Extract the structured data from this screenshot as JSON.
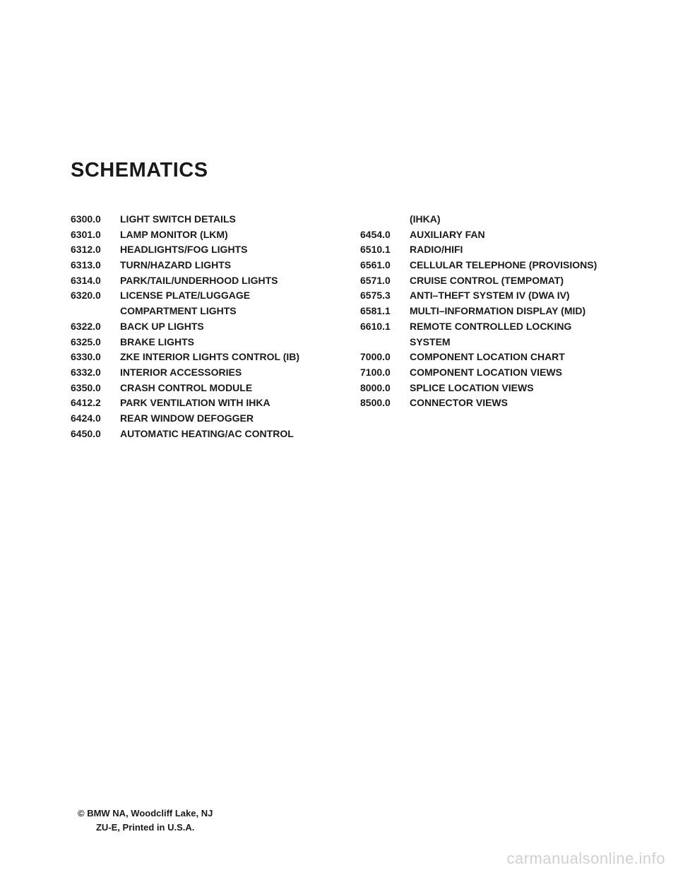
{
  "title": "SCHEMATICS",
  "leftColumn": [
    {
      "code": "6300.0",
      "label": "LIGHT SWITCH DETAILS"
    },
    {
      "code": "6301.0",
      "label": "LAMP MONITOR (LKM)"
    },
    {
      "code": "6312.0",
      "label": "HEADLIGHTS/FOG LIGHTS"
    },
    {
      "code": "6313.0",
      "label": "TURN/HAZARD LIGHTS"
    },
    {
      "code": "6314.0",
      "label": "PARK/TAIL/UNDERHOOD LIGHTS"
    },
    {
      "code": "6320.0",
      "label": "LICENSE PLATE/LUGGAGE"
    },
    {
      "code": "",
      "label": "COMPARTMENT LIGHTS"
    },
    {
      "code": "6322.0",
      "label": "BACK UP LIGHTS"
    },
    {
      "code": "6325.0",
      "label": "BRAKE LIGHTS"
    },
    {
      "code": "6330.0",
      "label": "ZKE INTERIOR LIGHTS CONTROL (IB)"
    },
    {
      "code": "6332.0",
      "label": "INTERIOR ACCESSORIES"
    },
    {
      "code": "6350.0",
      "label": "CRASH CONTROL MODULE"
    },
    {
      "code": "6412.2",
      "label": "PARK VENTILATION WITH IHKA"
    },
    {
      "code": "6424.0",
      "label": "REAR WINDOW DEFOGGER"
    },
    {
      "code": "6450.0",
      "label": "AUTOMATIC HEATING/AC CONTROL"
    }
  ],
  "rightColumn": [
    {
      "code": "",
      "label": "(IHKA)"
    },
    {
      "code": "6454.0",
      "label": "AUXILIARY FAN"
    },
    {
      "code": "6510.1",
      "label": "RADIO/HIFI"
    },
    {
      "code": "6561.0",
      "label": "CELLULAR TELEPHONE (PROVISIONS)"
    },
    {
      "code": "6571.0",
      "label": "CRUISE CONTROL (TEMPOMAT)"
    },
    {
      "code": "6575.3",
      "label": "ANTI–THEFT SYSTEM IV (DWA IV)"
    },
    {
      "code": "6581.1",
      "label": "MULTI–INFORMATION DISPLAY (MID)"
    },
    {
      "code": "6610.1",
      "label": "REMOTE CONTROLLED LOCKING"
    },
    {
      "code": "",
      "label": "SYSTEM"
    },
    {
      "code": "7000.0",
      "label": "COMPONENT LOCATION CHART"
    },
    {
      "code": "7100.0",
      "label": "COMPONENT LOCATION VIEWS"
    },
    {
      "code": "8000.0",
      "label": "SPLICE LOCATION VIEWS"
    },
    {
      "code": "8500.0",
      "label": "CONNECTOR VIEWS"
    }
  ],
  "footer": {
    "line1": "© BMW NA, Woodcliff Lake, NJ",
    "line2": "ZU-E, Printed in U.S.A."
  },
  "watermark": "carmanualsonline.info"
}
